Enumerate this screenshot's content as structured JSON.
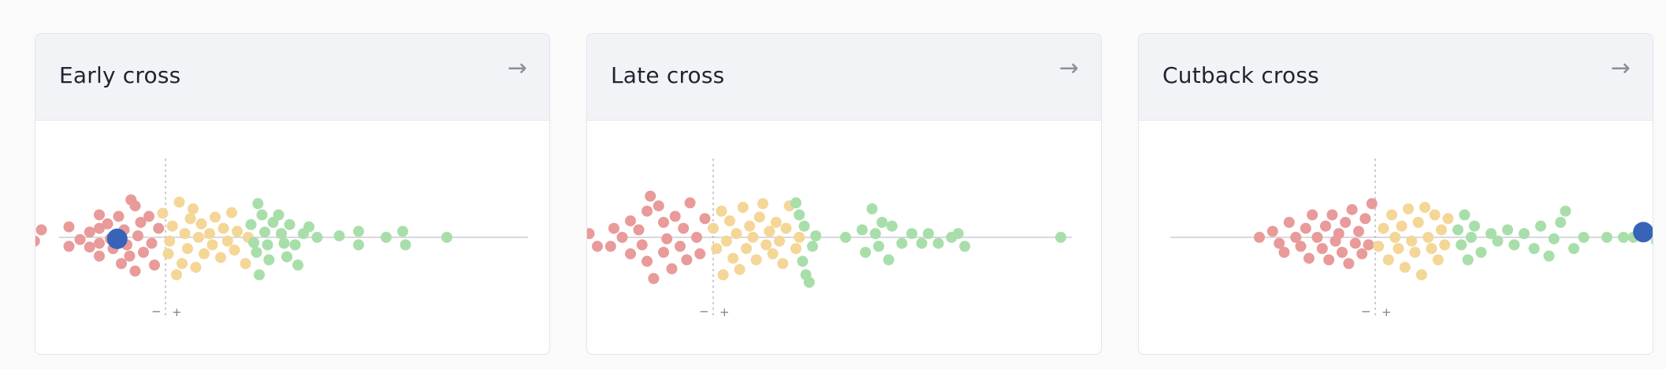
{
  "cards": [
    {
      "title": "Early cross",
      "arrow": "→",
      "minus": "−",
      "plus": "+",
      "highlight": {
        "x": -0.35,
        "y": 0.02
      },
      "dots": {
        "red": [
          [
            -0.95,
            0.05
          ],
          [
            -0.9,
            -0.1
          ],
          [
            -0.7,
            0.12
          ],
          [
            -0.7,
            -0.14
          ],
          [
            -0.62,
            0.03
          ],
          [
            -0.55,
            0.13
          ],
          [
            -0.55,
            -0.07
          ],
          [
            -0.48,
            0.25
          ],
          [
            -0.48,
            0.08
          ],
          [
            -0.48,
            -0.12
          ],
          [
            -0.48,
            -0.3
          ],
          [
            -0.42,
            -0.18
          ],
          [
            -0.4,
            0.02
          ],
          [
            -0.38,
            0.15
          ],
          [
            -0.34,
            -0.28
          ],
          [
            -0.32,
            0.35
          ],
          [
            -0.3,
            -0.1
          ],
          [
            -0.28,
            0.1
          ],
          [
            -0.26,
            0.25
          ],
          [
            -0.22,
            -0.42
          ],
          [
            -0.2,
            -0.02
          ],
          [
            -0.18,
            -0.2
          ],
          [
            -0.16,
            0.2
          ],
          [
            -0.12,
            -0.28
          ],
          [
            -0.1,
            0.08
          ],
          [
            -0.08,
            0.37
          ],
          [
            -0.05,
            -0.12
          ],
          [
            -0.25,
            -0.5
          ],
          [
            -0.22,
            0.45
          ]
        ],
        "yellow": [
          [
            -0.02,
            -0.32
          ],
          [
            0.02,
            0.22
          ],
          [
            0.03,
            0.05
          ],
          [
            0.05,
            -0.15
          ],
          [
            0.08,
            0.5
          ],
          [
            0.1,
            -0.47
          ],
          [
            0.12,
            0.35
          ],
          [
            0.14,
            -0.05
          ],
          [
            0.16,
            0.15
          ],
          [
            0.18,
            -0.25
          ],
          [
            0.2,
            -0.38
          ],
          [
            0.22,
            0.4
          ],
          [
            0.24,
            0.0
          ],
          [
            0.26,
            -0.18
          ],
          [
            0.28,
            0.22
          ],
          [
            0.32,
            -0.05
          ],
          [
            0.34,
            0.1
          ],
          [
            0.36,
            -0.27
          ],
          [
            0.4,
            0.27
          ],
          [
            0.42,
            -0.12
          ],
          [
            0.45,
            0.05
          ],
          [
            0.48,
            -0.33
          ],
          [
            0.5,
            0.17
          ],
          [
            0.52,
            -0.08
          ],
          [
            0.58,
            0.35
          ],
          [
            0.6,
            0.0
          ]
        ],
        "green": [
          [
            0.62,
            -0.17
          ],
          [
            0.64,
            0.07
          ],
          [
            0.66,
            0.2
          ],
          [
            0.67,
            -0.45
          ],
          [
            0.68,
            0.5
          ],
          [
            0.7,
            -0.3
          ],
          [
            0.72,
            -0.07
          ],
          [
            0.74,
            0.1
          ],
          [
            0.75,
            0.3
          ],
          [
            0.78,
            -0.2
          ],
          [
            0.82,
            -0.3
          ],
          [
            0.84,
            -0.05
          ],
          [
            0.86,
            0.08
          ],
          [
            0.88,
            0.26
          ],
          [
            0.9,
            -0.17
          ],
          [
            0.94,
            0.1
          ],
          [
            0.96,
            0.37
          ],
          [
            1.0,
            -0.05
          ],
          [
            1.04,
            -0.14
          ],
          [
            1.1,
            0.0
          ],
          [
            1.26,
            -0.02
          ],
          [
            1.4,
            0.1
          ],
          [
            1.4,
            -0.08
          ],
          [
            1.6,
            0.0
          ],
          [
            1.74,
            0.1
          ],
          [
            1.72,
            -0.08
          ],
          [
            2.04,
            0.0
          ]
        ]
      }
    },
    {
      "title": "Late cross",
      "arrow": "→",
      "minus": "−",
      "plus": "+",
      "highlight": {
        "x": -0.93,
        "y": 0.0
      },
      "dots": {
        "red": [
          [
            -1.0,
            0.0
          ],
          [
            -0.85,
            -0.15
          ],
          [
            -0.8,
            0.1
          ],
          [
            -0.75,
            -0.05
          ],
          [
            -0.7,
            0.12
          ],
          [
            -0.62,
            0.12
          ],
          [
            -0.6,
            -0.12
          ],
          [
            -0.55,
            0.0
          ],
          [
            -0.5,
            0.22
          ],
          [
            -0.5,
            -0.22
          ],
          [
            -0.45,
            -0.1
          ],
          [
            -0.43,
            0.1
          ],
          [
            -0.4,
            0.32
          ],
          [
            -0.4,
            -0.35
          ],
          [
            -0.38,
            -0.55
          ],
          [
            -0.36,
            0.55
          ],
          [
            -0.33,
            -0.42
          ],
          [
            -0.3,
            0.2
          ],
          [
            -0.3,
            -0.2
          ],
          [
            -0.28,
            0.02
          ],
          [
            -0.25,
            0.42
          ],
          [
            -0.23,
            -0.28
          ],
          [
            -0.2,
            0.12
          ],
          [
            -0.18,
            -0.12
          ],
          [
            -0.16,
            0.3
          ],
          [
            -0.14,
            -0.46
          ],
          [
            -0.1,
            0.0
          ],
          [
            -0.08,
            0.22
          ],
          [
            -0.05,
            -0.25
          ]
        ],
        "yellow": [
          [
            0.0,
            -0.12
          ],
          [
            0.02,
            0.15
          ],
          [
            0.05,
            -0.35
          ],
          [
            0.06,
            0.5
          ],
          [
            0.08,
            0.05
          ],
          [
            0.1,
            -0.22
          ],
          [
            0.12,
            0.28
          ],
          [
            0.14,
            -0.05
          ],
          [
            0.16,
            0.43
          ],
          [
            0.18,
            -0.4
          ],
          [
            0.2,
            0.15
          ],
          [
            0.22,
            -0.15
          ],
          [
            0.24,
            0.0
          ],
          [
            0.26,
            0.3
          ],
          [
            0.28,
            -0.27
          ],
          [
            0.3,
            -0.45
          ],
          [
            0.32,
            0.1
          ],
          [
            0.34,
            -0.08
          ],
          [
            0.36,
            0.22
          ],
          [
            0.38,
            -0.2
          ],
          [
            0.4,
            0.05
          ],
          [
            0.42,
            0.35
          ],
          [
            0.44,
            -0.12
          ],
          [
            0.46,
            -0.42
          ],
          [
            0.5,
            0.15
          ],
          [
            0.52,
            0.0
          ]
        ],
        "green": [
          [
            0.5,
            -0.46
          ],
          [
            0.52,
            -0.3
          ],
          [
            0.54,
            0.32
          ],
          [
            0.55,
            -0.15
          ],
          [
            0.56,
            0.5
          ],
          [
            0.58,
            0.6
          ],
          [
            0.6,
            0.12
          ],
          [
            0.62,
            -0.02
          ],
          [
            0.8,
            0.0
          ],
          [
            0.9,
            -0.1
          ],
          [
            0.92,
            0.2
          ],
          [
            0.96,
            -0.38
          ],
          [
            0.98,
            -0.05
          ],
          [
            1.0,
            0.12
          ],
          [
            1.02,
            -0.2
          ],
          [
            1.06,
            0.3
          ],
          [
            1.08,
            -0.15
          ],
          [
            1.14,
            0.08
          ],
          [
            1.2,
            -0.05
          ],
          [
            1.26,
            0.08
          ],
          [
            1.3,
            -0.05
          ],
          [
            1.36,
            0.08
          ],
          [
            1.44,
            0.0
          ],
          [
            1.48,
            -0.05
          ],
          [
            1.52,
            0.12
          ],
          [
            2.1,
            0.0
          ]
        ]
      }
    },
    {
      "title": "Cutback cross",
      "arrow": "→",
      "minus": "−",
      "plus": "+",
      "highlight": {
        "x": 1.62,
        "y": -0.07
      },
      "dots": {
        "red": [
          [
            -1.5,
            0.0
          ],
          [
            -0.7,
            0.0
          ],
          [
            -0.62,
            -0.08
          ],
          [
            -0.58,
            0.08
          ],
          [
            -0.55,
            0.2
          ],
          [
            -0.52,
            -0.2
          ],
          [
            -0.48,
            0.0
          ],
          [
            -0.45,
            0.12
          ],
          [
            -0.42,
            -0.12
          ],
          [
            -0.4,
            0.28
          ],
          [
            -0.38,
            -0.3
          ],
          [
            -0.35,
            0.0
          ],
          [
            -0.32,
            0.15
          ],
          [
            -0.3,
            -0.15
          ],
          [
            -0.28,
            0.3
          ],
          [
            -0.26,
            -0.3
          ],
          [
            -0.24,
            0.05
          ],
          [
            -0.22,
            -0.05
          ],
          [
            -0.2,
            0.2
          ],
          [
            -0.18,
            -0.2
          ],
          [
            -0.16,
            0.35
          ],
          [
            -0.14,
            -0.37
          ],
          [
            -0.12,
            0.08
          ],
          [
            -0.1,
            -0.08
          ],
          [
            -0.08,
            0.22
          ],
          [
            -0.06,
            -0.25
          ],
          [
            -0.04,
            0.1
          ],
          [
            -0.02,
            -0.45
          ]
        ],
        "yellow": [
          [
            0.02,
            0.12
          ],
          [
            0.05,
            -0.12
          ],
          [
            0.08,
            0.3
          ],
          [
            0.1,
            -0.3
          ],
          [
            0.12,
            0.0
          ],
          [
            0.14,
            0.15
          ],
          [
            0.16,
            -0.15
          ],
          [
            0.18,
            0.4
          ],
          [
            0.2,
            -0.38
          ],
          [
            0.22,
            0.05
          ],
          [
            0.24,
            0.2
          ],
          [
            0.26,
            -0.2
          ],
          [
            0.28,
            0.5
          ],
          [
            0.3,
            -0.4
          ],
          [
            0.32,
            0.0
          ],
          [
            0.34,
            0.15
          ],
          [
            0.36,
            -0.3
          ],
          [
            0.38,
            0.3
          ],
          [
            0.4,
            -0.1
          ],
          [
            0.42,
            0.1
          ],
          [
            0.44,
            -0.25
          ]
        ],
        "green": [
          [
            0.5,
            -0.1
          ],
          [
            0.52,
            0.1
          ],
          [
            0.54,
            -0.3
          ],
          [
            0.56,
            0.3
          ],
          [
            0.58,
            0.0
          ],
          [
            0.6,
            -0.15
          ],
          [
            0.64,
            0.2
          ],
          [
            0.7,
            -0.05
          ],
          [
            0.74,
            0.05
          ],
          [
            0.8,
            -0.1
          ],
          [
            0.84,
            0.1
          ],
          [
            0.9,
            -0.05
          ],
          [
            0.96,
            0.15
          ],
          [
            1.0,
            -0.15
          ],
          [
            1.05,
            0.25
          ],
          [
            1.08,
            0.02
          ],
          [
            1.12,
            -0.2
          ],
          [
            1.15,
            -0.35
          ],
          [
            1.2,
            0.15
          ],
          [
            1.26,
            0.0
          ],
          [
            1.4,
            0.0
          ],
          [
            1.5,
            0.0
          ],
          [
            1.56,
            0.0
          ],
          [
            1.7,
            0.05
          ],
          [
            1.76,
            0.05
          ],
          [
            1.9,
            0.0
          ]
        ]
      }
    }
  ],
  "colors": {
    "red": "#e99a9a",
    "yellow": "#f4d697",
    "green": "#a8deaa",
    "highlight": "#3763b9",
    "axis": "#d7d9de",
    "divider": "#b8bcc4"
  }
}
